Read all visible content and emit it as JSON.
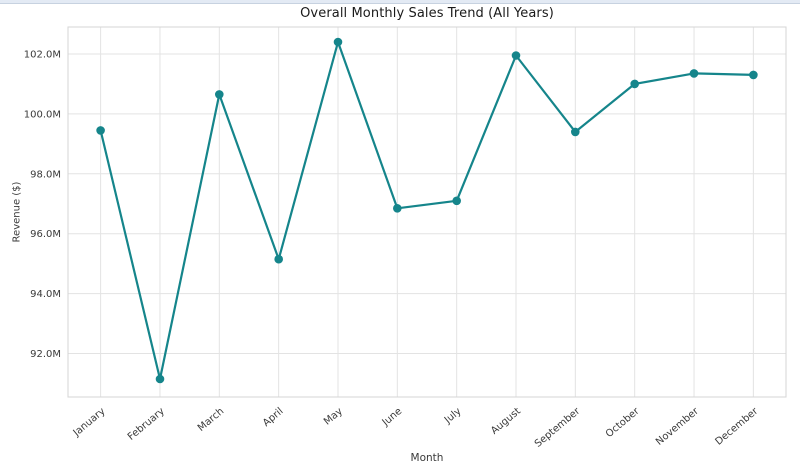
{
  "window": {
    "top_strip_color": "#e3eaf4"
  },
  "chart_data": {
    "type": "line",
    "title": "Overall Monthly Sales Trend (All Years)",
    "xlabel": "Month",
    "ylabel": "Revenue ($)",
    "categories": [
      "January",
      "February",
      "March",
      "April",
      "May",
      "June",
      "July",
      "August",
      "September",
      "October",
      "November",
      "December"
    ],
    "values": [
      99.45,
      91.15,
      100.65,
      95.15,
      102.4,
      96.85,
      97.1,
      101.95,
      99.4,
      101.0,
      101.35,
      101.3
    ],
    "ytick_values": [
      92,
      94,
      96,
      98,
      100,
      102
    ],
    "ytick_labels": [
      "92.0M",
      "94.0M",
      "96.0M",
      "98.0M",
      "100.0M",
      "102.0M"
    ],
    "ylim": [
      90.55,
      102.9
    ],
    "x_margin": 0.55,
    "grid": true,
    "legend": false,
    "line_color": "#15858b",
    "grid_color": "#e3e3e3",
    "border_color": "#d5d5d5",
    "tick_text_color": "#3a3a3a",
    "title_color": "#1a1a1a"
  }
}
